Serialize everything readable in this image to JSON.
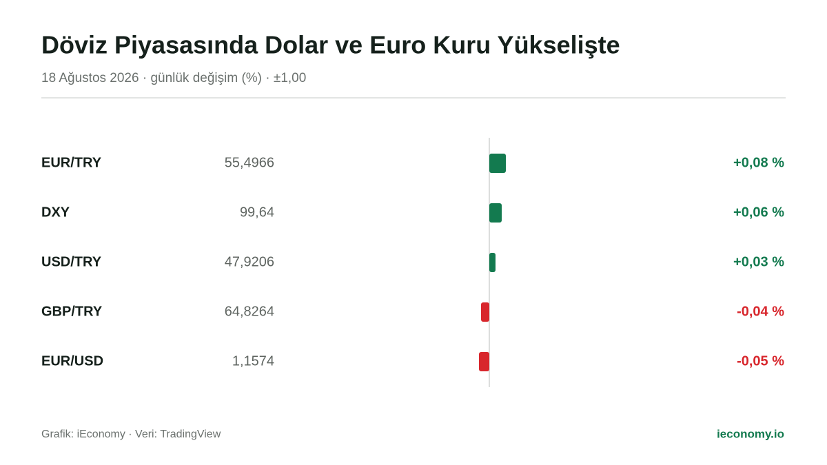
{
  "chart_data": {
    "type": "bar",
    "orientation": "horizontal",
    "title": "Döviz Piyasasında Dolar ve Euro Kuru Yükselişte",
    "subtitle": "18 Ağustos 2026 · günlük değişim (%) · ±1,00",
    "categories": [
      "EUR/TRY",
      "DXY",
      "USD/TRY",
      "GBP/TRY",
      "EUR/USD"
    ],
    "prices": [
      "55,4966",
      "99,64",
      "47,9206",
      "64,8264",
      "1,1574"
    ],
    "values": [
      0.08,
      0.06,
      0.03,
      -0.04,
      -0.05
    ],
    "value_labels": [
      "+0,08 %",
      "+0,06 %",
      "+0,03 %",
      "-0,04 %",
      "-0,05 %"
    ],
    "positive_color": "#137a4f",
    "negative_color": "#d8262c",
    "xlim": [
      -1,
      1
    ],
    "source": "Grafik: iEconomy · Veri: TradingView",
    "brand": "ieconomy.io"
  }
}
